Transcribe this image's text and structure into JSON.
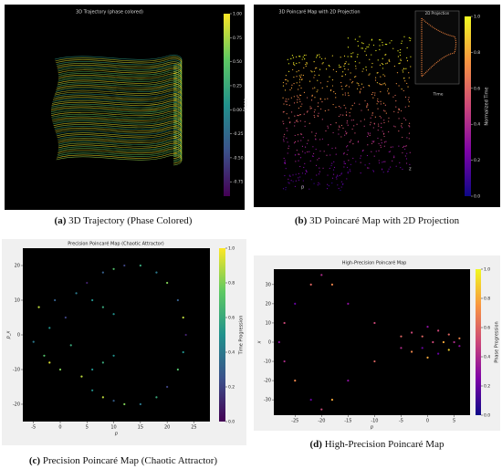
{
  "chart_data": [
    {
      "type": "3d-line",
      "title": "3D Trajectory (phase colored)",
      "label": "(a)",
      "caption": "3D Trajectory (Phase Colored)",
      "colorbar": {
        "label": "Phase",
        "colormap": "viridis",
        "lim": [
          -0.9,
          1.0
        ],
        "ticks": [
          {
            "value": 1,
            "label": "1.00"
          },
          0.75,
          {
            "value": 0.5,
            "label": "0.50"
          },
          0.25,
          {
            "value": 0,
            "label": "0.00"
          },
          -0.25,
          {
            "value": -0.5,
            "label": "-0.50"
          },
          -0.75
        ]
      }
    },
    {
      "type": "3d-scatter",
      "title": "3D Poincaré Map with 2D Projection",
      "label": "(b)",
      "caption": "3D Poincaré Map with 2D Projection",
      "xlabel": "p",
      "zlabel": "z",
      "inset_title": "2D Projection",
      "inset_label": "Time",
      "colorbar": {
        "label": "Normalized Time",
        "colormap": "plasma",
        "lim": [
          0,
          1
        ],
        "ticks": [
          {
            "value": 1,
            "label": "1.0"
          },
          0.8,
          0.6,
          0.4,
          0.2,
          {
            "value": 0,
            "label": "0.0"
          }
        ]
      }
    },
    {
      "type": "scatter",
      "title": "Precision Poincaré Map (Chaotic Attractor)",
      "label": "(c)",
      "caption": "Precision Poincaré Map (Chaotic Attractor)",
      "xlabel": "p",
      "ylabel": "p_x",
      "xlim": [
        -7,
        28
      ],
      "ylim": [
        -25,
        25
      ],
      "xticks": [
        -5,
        0,
        5,
        10,
        15,
        20,
        25
      ],
      "yticks": [
        -20,
        -10,
        0,
        10,
        20
      ],
      "x": [
        -4,
        -3,
        -2,
        -1,
        0,
        1,
        2,
        3,
        4,
        5,
        6,
        8,
        10,
        12,
        15,
        18,
        20,
        22,
        23,
        23.5,
        23,
        22,
        20,
        18,
        15,
        12,
        10,
        8,
        6,
        8,
        10,
        6,
        8,
        10,
        -5,
        -2
      ],
      "values": [
        8,
        -6,
        2,
        10,
        -10,
        5,
        -3,
        12,
        -12,
        15,
        -16,
        18,
        19,
        20,
        20,
        18,
        15,
        10,
        5,
        0,
        -5,
        -10,
        -15,
        -18,
        -20,
        -20,
        -19,
        -18,
        10,
        8,
        6,
        -10,
        -8,
        -6,
        -2,
        -8
      ],
      "color_values": [
        0.9,
        0.7,
        0.5,
        0.3,
        0.8,
        0.2,
        0.6,
        0.4,
        0.9,
        0.1,
        0.5,
        0.3,
        0.7,
        0.2,
        0.6,
        0.4,
        0.8,
        0.3,
        0.9,
        0.1,
        0.5,
        0.7,
        0.2,
        0.6,
        0.4,
        0.8,
        0.3,
        0.9,
        0.5,
        0.6,
        0.5,
        0.5,
        0.6,
        0.5,
        0.4,
        0.95
      ],
      "colorbar": {
        "label": "Time Progression",
        "colormap": "viridis",
        "lim": [
          0,
          1
        ],
        "ticks": [
          {
            "value": 0,
            "label": "0.0"
          },
          0.2,
          0.4,
          0.6,
          0.8,
          {
            "value": 1,
            "label": "1.0"
          }
        ]
      }
    },
    {
      "type": "scatter",
      "title": "High-Precision Poincaré Map",
      "label": "(d)",
      "caption": "High-Precision Poincaré Map",
      "xlabel": "p",
      "ylabel": "x",
      "xlim": [
        -29,
        8
      ],
      "ylim": [
        -38,
        38
      ],
      "xticks": [
        -25,
        -20,
        -15,
        -10,
        -5,
        0,
        5
      ],
      "yticks": [
        -30,
        -20,
        -10,
        0,
        10,
        20,
        30
      ],
      "x": [
        -28,
        -27,
        -25,
        -22,
        -20,
        -18,
        -15,
        -10,
        -5,
        -27,
        -25,
        -22,
        -20,
        -18,
        -15,
        -10,
        -5,
        -3,
        -3,
        0,
        0,
        2,
        2,
        4,
        4,
        5,
        6,
        6,
        1,
        3,
        -1,
        -1
      ],
      "values": [
        0,
        10,
        20,
        30,
        35,
        30,
        20,
        10,
        3,
        -10,
        -20,
        -30,
        -35,
        -30,
        -20,
        -10,
        -3,
        5,
        -5,
        8,
        -8,
        6,
        -6,
        4,
        -4,
        0,
        2,
        -2,
        0,
        0,
        3,
        -3
      ],
      "color_values": [
        0.3,
        0.5,
        0.2,
        0.6,
        0.4,
        0.7,
        0.3,
        0.5,
        0.6,
        0.4,
        0.7,
        0.2,
        0.5,
        0.8,
        0.3,
        0.6,
        0.4,
        0.5,
        0.7,
        0.3,
        0.8,
        0.5,
        0.2,
        0.6,
        0.9,
        0.4,
        0.7,
        0.3,
        0.5,
        0.8,
        0.6,
        0.2
      ],
      "colorbar": {
        "label": "Phase Progression",
        "colormap": "plasma",
        "lim": [
          0,
          1
        ],
        "ticks": [
          {
            "value": 0,
            "label": "0.0"
          },
          0.2,
          0.4,
          0.6,
          0.8,
          {
            "value": 1,
            "label": "1.0"
          }
        ]
      }
    }
  ]
}
